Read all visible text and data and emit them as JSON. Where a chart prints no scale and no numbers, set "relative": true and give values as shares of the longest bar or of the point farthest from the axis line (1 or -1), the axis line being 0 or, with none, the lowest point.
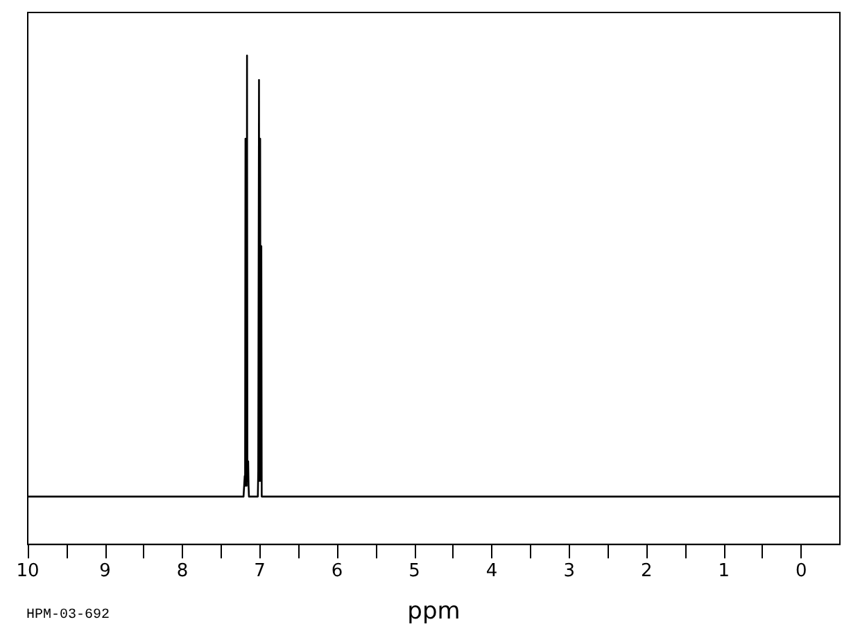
{
  "chart_data": {
    "type": "line",
    "xlabel": "ppm",
    "annotations": [
      "HPM-03-692"
    ],
    "x": [
      10,
      7.21,
      7.195,
      7.19,
      7.185,
      7.18,
      7.175,
      7.17,
      7.165,
      7.16,
      7.15,
      7.145,
      7.14,
      7.05,
      7.025,
      7.02,
      7.01,
      7.005,
      7.0,
      6.995,
      6.99,
      6.985,
      6.98,
      6.975,
      6.965,
      -0.5
    ],
    "values": [
      0.098,
      0.098,
      0.14,
      0.12,
      0.83,
      0.13,
      0.13,
      0.12,
      1.0,
      0.13,
      0.17,
      0.12,
      0.098,
      0.098,
      0.098,
      0.15,
      0.95,
      0.13,
      0.14,
      0.83,
      0.13,
      0.15,
      0.61,
      0.098,
      0.098,
      0.098
    ],
    "color": "#000000",
    "relative": true,
    "marker": "none",
    "xlim": [
      10,
      -0.5
    ],
    "xticks": [
      10,
      {
        "value": 9.5,
        "label": null
      },
      9,
      {
        "value": 8.5,
        "label": null
      },
      8,
      {
        "value": 7.5,
        "label": null
      },
      7,
      {
        "value": 6.5,
        "label": null
      },
      6,
      {
        "value": 5.5,
        "label": null
      },
      5,
      {
        "value": 4.5,
        "label": null
      },
      4,
      {
        "value": 3.5,
        "label": null
      },
      3,
      {
        "value": 2.5,
        "label": null
      },
      2,
      {
        "value": 1.5,
        "label": null
      },
      1,
      {
        "value": 0.5,
        "label": null
      },
      0
    ]
  }
}
